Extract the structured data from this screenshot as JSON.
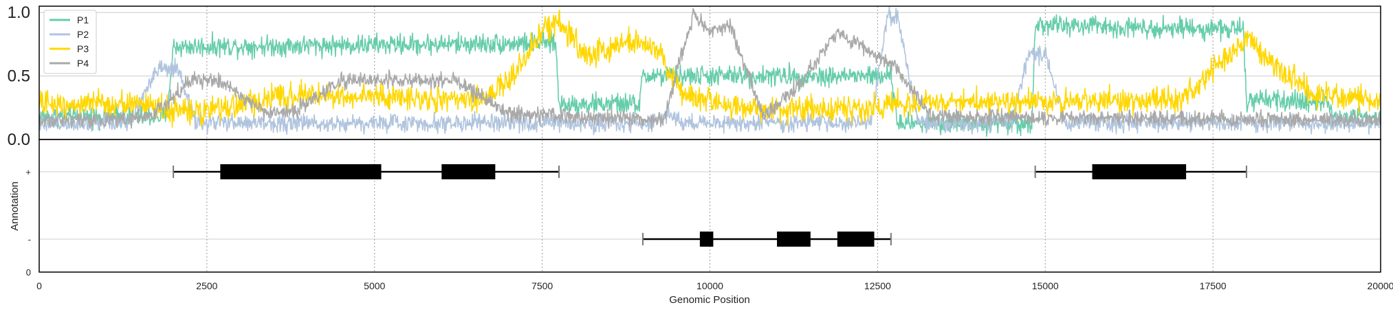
{
  "chart_data": [
    {
      "type": "line",
      "panel": "signal",
      "xlim": [
        0,
        20000
      ],
      "ylim": [
        0,
        1.05
      ],
      "yticks": [
        0.0,
        0.5,
        1.0
      ],
      "ytick_labels": [
        "0.0",
        "0.5",
        "1.0"
      ],
      "grid": true,
      "legend_position": "top-left",
      "legend": [
        "P1",
        "P2",
        "P3",
        "P4"
      ],
      "series": [
        {
          "name": "P1",
          "color": "#66cdaa",
          "noise": 0.04,
          "points": [
            [
              0,
              0.18
            ],
            [
              1900,
              0.18
            ],
            [
              2000,
              0.73
            ],
            [
              7700,
              0.76
            ],
            [
              7750,
              0.28
            ],
            [
              8950,
              0.28
            ],
            [
              9000,
              0.5
            ],
            [
              12700,
              0.5
            ],
            [
              12800,
              0.13
            ],
            [
              14800,
              0.13
            ],
            [
              14850,
              0.9
            ],
            [
              17950,
              0.87
            ],
            [
              18000,
              0.3
            ],
            [
              19200,
              0.3
            ],
            [
              19300,
              0.18
            ],
            [
              20000,
              0.18
            ]
          ]
        },
        {
          "name": "P2",
          "color": "#b0c4de",
          "noise": 0.035,
          "points": [
            [
              0,
              0.13
            ],
            [
              1350,
              0.14
            ],
            [
              1750,
              0.55
            ],
            [
              2050,
              0.55
            ],
            [
              2350,
              0.13
            ],
            [
              9200,
              0.13
            ],
            [
              9400,
              0.2
            ],
            [
              9600,
              0.13
            ],
            [
              12400,
              0.13
            ],
            [
              12650,
              0.97
            ],
            [
              12800,
              0.97
            ],
            [
              13100,
              0.13
            ],
            [
              14500,
              0.13
            ],
            [
              14750,
              0.68
            ],
            [
              15000,
              0.68
            ],
            [
              15300,
              0.13
            ],
            [
              20000,
              0.13
            ]
          ]
        },
        {
          "name": "P3",
          "color": "#ffd700",
          "noise": 0.05,
          "points": [
            [
              0,
              0.28
            ],
            [
              1600,
              0.28
            ],
            [
              2000,
              0.22
            ],
            [
              2600,
              0.22
            ],
            [
              3000,
              0.28
            ],
            [
              3800,
              0.35
            ],
            [
              5000,
              0.34
            ],
            [
              6500,
              0.3
            ],
            [
              7000,
              0.45
            ],
            [
              7500,
              0.85
            ],
            [
              7750,
              0.95
            ],
            [
              8150,
              0.65
            ],
            [
              8800,
              0.78
            ],
            [
              9200,
              0.72
            ],
            [
              9600,
              0.35
            ],
            [
              10500,
              0.25
            ],
            [
              11300,
              0.23
            ],
            [
              12400,
              0.25
            ],
            [
              13200,
              0.3
            ],
            [
              17000,
              0.3
            ],
            [
              17600,
              0.6
            ],
            [
              18050,
              0.8
            ],
            [
              18500,
              0.55
            ],
            [
              19000,
              0.35
            ],
            [
              20000,
              0.3
            ]
          ]
        },
        {
          "name": "P4",
          "color": "#a9a9a9",
          "noise": 0.03,
          "points": [
            [
              0,
              0.15
            ],
            [
              1650,
              0.17
            ],
            [
              2300,
              0.48
            ],
            [
              2700,
              0.46
            ],
            [
              3400,
              0.2
            ],
            [
              3800,
              0.22
            ],
            [
              4500,
              0.46
            ],
            [
              5300,
              0.47
            ],
            [
              6200,
              0.47
            ],
            [
              7000,
              0.2
            ],
            [
              9300,
              0.15
            ],
            [
              9750,
              0.98
            ],
            [
              10000,
              0.85
            ],
            [
              10300,
              0.9
            ],
            [
              10800,
              0.18
            ],
            [
              11300,
              0.42
            ],
            [
              11900,
              0.85
            ],
            [
              12300,
              0.72
            ],
            [
              12800,
              0.55
            ],
            [
              13300,
              0.18
            ],
            [
              20000,
              0.15
            ]
          ]
        }
      ]
    },
    {
      "type": "gene-annotation",
      "panel": "annotation",
      "xlim": [
        0,
        20000
      ],
      "xlabel": "Genomic Position",
      "ylabel": "Annotation",
      "xticks": [
        0,
        2500,
        5000,
        7500,
        10000,
        12500,
        15000,
        17500,
        20000
      ],
      "ytick_labels": [
        "0",
        "-",
        "+"
      ],
      "grid": true,
      "tracks": [
        {
          "strand": "+",
          "start": 2000,
          "end": 7750,
          "exons": [
            [
              2700,
              5100
            ],
            [
              6000,
              6800
            ]
          ]
        },
        {
          "strand": "-",
          "start": 9000,
          "end": 12700,
          "exons": [
            [
              9850,
              10050
            ],
            [
              11000,
              11500
            ],
            [
              11900,
              12450
            ]
          ]
        },
        {
          "strand": "+",
          "start": 14850,
          "end": 18000,
          "exons": [
            [
              15700,
              17100
            ]
          ]
        }
      ]
    }
  ]
}
